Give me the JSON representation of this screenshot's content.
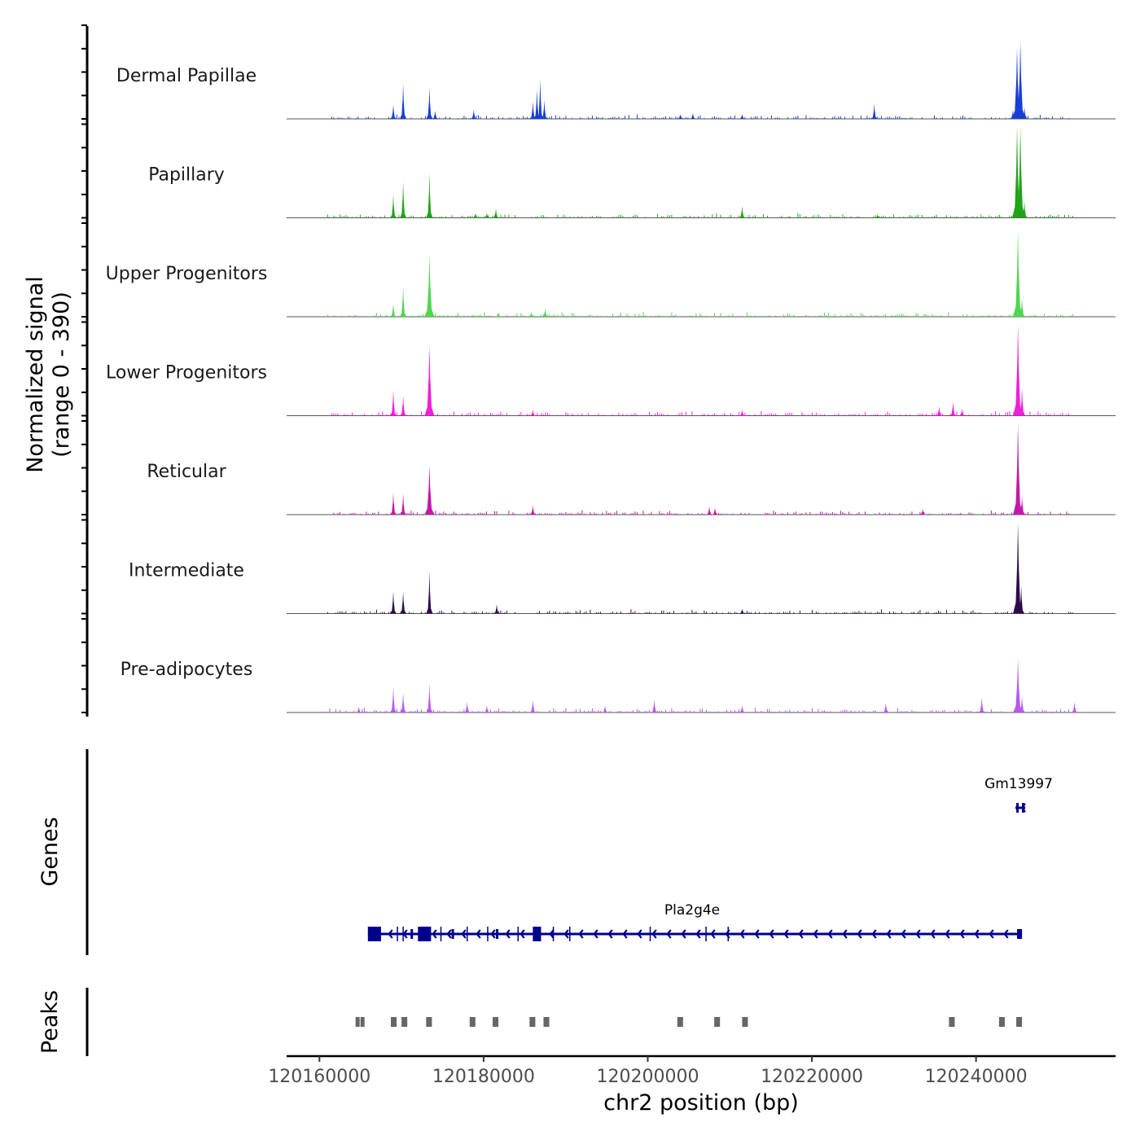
{
  "chart_data": {
    "type": "area",
    "chromosome": "chr2",
    "x_range": [
      120156000,
      120257000
    ],
    "xlabel": "chr2 position (bp)",
    "x_ticks": [
      120160000,
      120180000,
      120200000,
      120220000,
      120240000
    ],
    "x_tick_labels": [
      "120160000",
      "120180000",
      "120200000",
      "120220000",
      "120240000"
    ],
    "ylabel_line1": "Normalized signal",
    "ylabel_line2": "(range 0 - 390)",
    "y_range": [
      0,
      390
    ],
    "genes_label": "Genes",
    "peaks_label": "Peaks",
    "tracks": [
      {
        "name": "Dermal Papillae",
        "color": "#1a3fd6",
        "peaks": [
          [
            120169000,
            60
          ],
          [
            120170200,
            150
          ],
          [
            120173400,
            135
          ],
          [
            120174100,
            35
          ],
          [
            120178800,
            40
          ],
          [
            120186000,
            75
          ],
          [
            120186500,
            125
          ],
          [
            120186900,
            170
          ],
          [
            120187400,
            80
          ],
          [
            120204000,
            20
          ],
          [
            120205500,
            25
          ],
          [
            120211500,
            20
          ],
          [
            120227600,
            65
          ],
          [
            120244500,
            40
          ],
          [
            120245000,
            300
          ],
          [
            120245400,
            330
          ],
          [
            120245900,
            50
          ]
        ]
      },
      {
        "name": "Papillary",
        "color": "#22a31a",
        "peaks": [
          [
            120169000,
            100
          ],
          [
            120170200,
            155
          ],
          [
            120173400,
            190
          ],
          [
            120179000,
            20
          ],
          [
            120180400,
            20
          ],
          [
            120181500,
            40
          ],
          [
            120211500,
            50
          ],
          [
            120228000,
            15
          ],
          [
            120245000,
            430
          ],
          [
            120245400,
            480
          ],
          [
            120245900,
            70
          ]
        ]
      },
      {
        "name": "Upper Progenitors",
        "color": "#4fd64f",
        "peaks": [
          [
            120169000,
            55
          ],
          [
            120170200,
            130
          ],
          [
            120173400,
            260
          ],
          [
            120181800,
            20
          ],
          [
            120185800,
            20
          ],
          [
            120187500,
            35
          ],
          [
            120245100,
            370
          ],
          [
            120245600,
            80
          ]
        ]
      },
      {
        "name": "Lower Progenitors",
        "color": "#ee1fd8",
        "peaks": [
          [
            120169000,
            110
          ],
          [
            120170200,
            85
          ],
          [
            120173400,
            300
          ],
          [
            120186000,
            25
          ],
          [
            120211500,
            25
          ],
          [
            120235500,
            40
          ],
          [
            120237200,
            60
          ],
          [
            120238300,
            30
          ],
          [
            120245100,
            480
          ],
          [
            120245600,
            120
          ]
        ]
      },
      {
        "name": "Reticular",
        "color": "#c21aa8",
        "peaks": [
          [
            120169000,
            95
          ],
          [
            120170200,
            90
          ],
          [
            120173400,
            210
          ],
          [
            120186000,
            40
          ],
          [
            120207500,
            35
          ],
          [
            120208200,
            30
          ],
          [
            120233500,
            25
          ],
          [
            120245100,
            560
          ],
          [
            120245600,
            80
          ]
        ]
      },
      {
        "name": "Intermediate",
        "color": "#2e0c4a",
        "peaks": [
          [
            120169000,
            95
          ],
          [
            120170200,
            95
          ],
          [
            120173400,
            180
          ],
          [
            120181600,
            40
          ],
          [
            120211500,
            20
          ],
          [
            120245100,
            470
          ],
          [
            120245500,
            120
          ]
        ]
      },
      {
        "name": "Pre-adipocytes",
        "color": "#b65be8",
        "peaks": [
          [
            120164800,
            25
          ],
          [
            120169000,
            110
          ],
          [
            120170200,
            85
          ],
          [
            120173400,
            125
          ],
          [
            120178000,
            45
          ],
          [
            120180400,
            30
          ],
          [
            120186000,
            55
          ],
          [
            120194800,
            30
          ],
          [
            120200800,
            55
          ],
          [
            120211500,
            30
          ],
          [
            120229000,
            40
          ],
          [
            120240700,
            65
          ],
          [
            120245100,
            230
          ],
          [
            120245600,
            70
          ],
          [
            120252000,
            45
          ]
        ]
      }
    ],
    "genes": [
      {
        "name": "Gm13997",
        "start": 120244800,
        "end": 120246000,
        "strand": "-",
        "exons": [
          [
            120244900,
            120245100
          ],
          [
            120245600,
            120245800
          ]
        ]
      },
      {
        "name": "Pla2g4e",
        "start": 120165900,
        "end": 120245600,
        "strand": "-",
        "exons": [
          [
            120165900,
            120167500
          ],
          [
            120171100,
            120171300
          ],
          [
            120172000,
            120173600
          ],
          [
            120176100,
            120176300
          ],
          [
            120181500,
            120181700
          ],
          [
            120186000,
            120187000
          ],
          [
            120245000,
            120245600
          ]
        ]
      }
    ],
    "gene_color": "#00008b",
    "peaks": [
      [
        120164400,
        120164900
      ],
      [
        120165000,
        120165400
      ],
      [
        120168700,
        120169400
      ],
      [
        120170000,
        120170700
      ],
      [
        120173000,
        120173700
      ],
      [
        120178300,
        120179000
      ],
      [
        120181100,
        120181800
      ],
      [
        120185600,
        120186300
      ],
      [
        120187300,
        120188000
      ],
      [
        120203600,
        120204300
      ],
      [
        120208100,
        120208800
      ],
      [
        120211500,
        120212200
      ],
      [
        120236700,
        120237400
      ],
      [
        120242800,
        120243500
      ],
      [
        120244900,
        120245600
      ]
    ],
    "peak_color": "#666666"
  }
}
